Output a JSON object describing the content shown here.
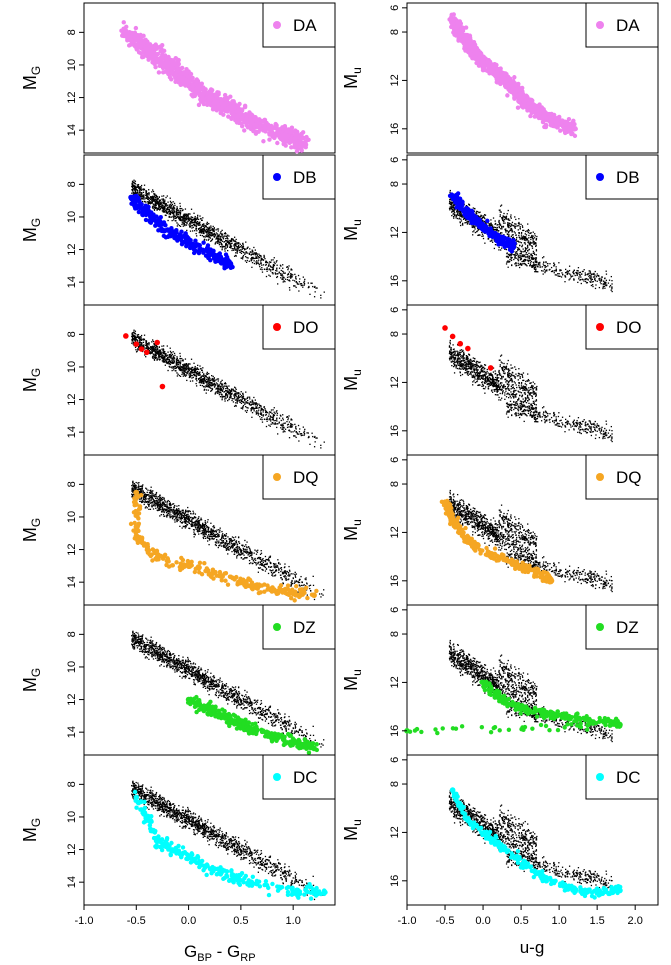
{
  "chart_data": [
    {
      "type": "scatter",
      "column": "left",
      "row": 0,
      "class": "DA",
      "color": "#ee82ee",
      "ylabel": "M",
      "ylabel_sub": "G",
      "xlim": [
        -1.0,
        1.4
      ],
      "ylim": [
        15.4,
        6.2
      ],
      "yticks": [
        8,
        10,
        12,
        14
      ],
      "xticks": [
        -1.0,
        -0.5,
        0.0,
        0.5,
        1.0
      ],
      "legend": "DA",
      "points": [
        {
          "x": -0.6,
          "y": 8.0
        },
        {
          "x": -0.4,
          "y": 9.0
        },
        {
          "x": -0.2,
          "y": 10.0
        },
        {
          "x": 0.0,
          "y": 11.0
        },
        {
          "x": 0.2,
          "y": 12.0
        },
        {
          "x": 0.4,
          "y": 12.6
        },
        {
          "x": 0.6,
          "y": 13.5
        },
        {
          "x": 0.9,
          "y": 14.3
        },
        {
          "x": 1.1,
          "y": 14.8
        }
      ]
    },
    {
      "type": "scatter",
      "column": "left",
      "row": 1,
      "class": "DB",
      "color": "#0000ff",
      "ylabel": "M",
      "ylabel_sub": "G",
      "xlim": [
        -1.0,
        1.4
      ],
      "ylim": [
        15.4,
        6.2
      ],
      "yticks": [
        8,
        10,
        12,
        14
      ],
      "xticks": [
        -1.0,
        -0.5,
        0.0,
        0.5,
        1.0
      ],
      "legend": "DB",
      "points": [
        {
          "x": -0.55,
          "y": 8.8
        },
        {
          "x": -0.4,
          "y": 9.8
        },
        {
          "x": -0.2,
          "y": 10.8
        },
        {
          "x": 0.0,
          "y": 11.6
        },
        {
          "x": 0.2,
          "y": 12.2
        },
        {
          "x": 0.4,
          "y": 13.0
        }
      ]
    },
    {
      "type": "scatter",
      "column": "left",
      "row": 2,
      "class": "DO",
      "color": "#ff0000",
      "ylabel": "M",
      "ylabel_sub": "G",
      "xlim": [
        -1.0,
        1.4
      ],
      "ylim": [
        15.4,
        6.2
      ],
      "yticks": [
        8,
        10,
        12,
        14
      ],
      "xticks": [
        -1.0,
        -0.5,
        0.0,
        0.5,
        1.0
      ],
      "legend": "DO",
      "points": [
        {
          "x": -0.6,
          "y": 8.1
        },
        {
          "x": -0.5,
          "y": 8.6
        },
        {
          "x": -0.45,
          "y": 8.9
        },
        {
          "x": -0.4,
          "y": 9.1
        },
        {
          "x": -0.3,
          "y": 8.5
        },
        {
          "x": -0.25,
          "y": 11.2
        }
      ]
    },
    {
      "type": "scatter",
      "column": "left",
      "row": 3,
      "class": "DQ",
      "color": "#f5a623",
      "ylabel": "M",
      "ylabel_sub": "G",
      "xlim": [
        -1.0,
        1.4
      ],
      "ylim": [
        15.4,
        6.2
      ],
      "yticks": [
        8,
        10,
        12,
        14
      ],
      "xticks": [
        -1.0,
        -0.5,
        0.0,
        0.5,
        1.0
      ],
      "legend": "DQ",
      "points": [
        {
          "x": -0.5,
          "y": 8.5
        },
        {
          "x": -0.5,
          "y": 11.2
        },
        {
          "x": -0.3,
          "y": 12.5
        },
        {
          "x": 0.0,
          "y": 13.0
        },
        {
          "x": 0.3,
          "y": 13.6
        },
        {
          "x": 0.6,
          "y": 14.2
        },
        {
          "x": 0.9,
          "y": 14.6
        },
        {
          "x": 1.2,
          "y": 14.8
        }
      ]
    },
    {
      "type": "scatter",
      "column": "left",
      "row": 4,
      "class": "DZ",
      "color": "#22dd22",
      "ylabel": "M",
      "ylabel_sub": "G",
      "xlim": [
        -1.0,
        1.4
      ],
      "ylim": [
        15.4,
        6.2
      ],
      "yticks": [
        8,
        10,
        12,
        14
      ],
      "xticks": [
        -1.0,
        -0.5,
        0.0,
        0.5,
        1.0
      ],
      "legend": "DZ",
      "points": [
        {
          "x": 0.0,
          "y": 12.0
        },
        {
          "x": 0.2,
          "y": 12.6
        },
        {
          "x": 0.4,
          "y": 13.2
        },
        {
          "x": 0.6,
          "y": 13.8
        },
        {
          "x": 1.0,
          "y": 14.6
        },
        {
          "x": 1.2,
          "y": 15.0
        }
      ]
    },
    {
      "type": "scatter",
      "column": "left",
      "row": 5,
      "class": "DC",
      "color": "#00ffff",
      "ylabel": "M",
      "ylabel_sub": "G",
      "xlim": [
        -1.0,
        1.4
      ],
      "ylim": [
        15.4,
        6.2
      ],
      "yticks": [
        8,
        10,
        12,
        14
      ],
      "xticks": [
        -1.0,
        -0.5,
        0.0,
        0.5,
        1.0
      ],
      "xticklabels": [
        "-1.0",
        "-0.5",
        "0.0",
        "0.5",
        "1.0"
      ],
      "legend": "DC",
      "points": [
        {
          "x": -0.5,
          "y": 8.8
        },
        {
          "x": -0.3,
          "y": 11.5
        },
        {
          "x": 0.0,
          "y": 12.4
        },
        {
          "x": 0.3,
          "y": 13.4
        },
        {
          "x": 0.6,
          "y": 14.0
        },
        {
          "x": 1.0,
          "y": 14.6
        },
        {
          "x": 1.3,
          "y": 14.6
        }
      ]
    },
    {
      "type": "scatter",
      "column": "right",
      "row": 0,
      "class": "DA",
      "color": "#ee82ee",
      "ylabel": "M",
      "ylabel_sub": "u",
      "xlim": [
        -1.0,
        2.3
      ],
      "ylim": [
        18.0,
        5.6
      ],
      "yticks": [
        6,
        8,
        12,
        16
      ],
      "xticks": [
        -1.0,
        -0.5,
        0.0,
        0.5,
        1.0,
        1.5,
        2.0
      ],
      "legend": "DA",
      "points": [
        {
          "x": -0.4,
          "y": 7.0
        },
        {
          "x": -0.2,
          "y": 9.0
        },
        {
          "x": 0.0,
          "y": 10.5
        },
        {
          "x": 0.3,
          "y": 12.0
        },
        {
          "x": 0.5,
          "y": 13.5
        },
        {
          "x": 0.8,
          "y": 15.0
        },
        {
          "x": 1.2,
          "y": 16.0
        }
      ]
    },
    {
      "type": "scatter",
      "column": "right",
      "row": 1,
      "class": "DB",
      "color": "#0000ff",
      "ylabel": "M",
      "ylabel_sub": "u",
      "xlim": [
        -1.0,
        2.3
      ],
      "ylim": [
        18.0,
        5.6
      ],
      "yticks": [
        6,
        8,
        12,
        16
      ],
      "xticks": [
        -1.0,
        -0.5,
        0.0,
        0.5,
        1.0,
        1.5,
        2.0
      ],
      "legend": "DB",
      "points": [
        {
          "x": -0.4,
          "y": 9.0
        },
        {
          "x": -0.2,
          "y": 10.5
        },
        {
          "x": 0.0,
          "y": 11.5
        },
        {
          "x": 0.2,
          "y": 12.5
        },
        {
          "x": 0.4,
          "y": 13.2
        }
      ]
    },
    {
      "type": "scatter",
      "column": "right",
      "row": 2,
      "class": "DO",
      "color": "#ff0000",
      "ylabel": "M",
      "ylabel_sub": "u",
      "xlim": [
        -1.0,
        2.3
      ],
      "ylim": [
        18.0,
        5.6
      ],
      "yticks": [
        6,
        8,
        12,
        16
      ],
      "xticks": [
        -1.0,
        -0.5,
        0.0,
        0.5,
        1.0,
        1.5,
        2.0
      ],
      "legend": "DO",
      "points": [
        {
          "x": -0.5,
          "y": 7.5
        },
        {
          "x": -0.4,
          "y": 8.2
        },
        {
          "x": -0.3,
          "y": 8.8
        },
        {
          "x": -0.2,
          "y": 9.2
        },
        {
          "x": 0.1,
          "y": 10.8
        }
      ]
    },
    {
      "type": "scatter",
      "column": "right",
      "row": 3,
      "class": "DQ",
      "color": "#f5a623",
      "ylabel": "M",
      "ylabel_sub": "u",
      "xlim": [
        -1.0,
        2.3
      ],
      "ylim": [
        18.0,
        5.6
      ],
      "yticks": [
        6,
        8,
        12,
        16
      ],
      "xticks": [
        -1.0,
        -0.5,
        0.0,
        0.5,
        1.0,
        1.5,
        2.0
      ],
      "legend": "DQ",
      "points": [
        {
          "x": -0.5,
          "y": 9.5
        },
        {
          "x": -0.4,
          "y": 11.0
        },
        {
          "x": -0.2,
          "y": 12.8
        },
        {
          "x": 0.1,
          "y": 13.8
        },
        {
          "x": 0.4,
          "y": 14.5
        },
        {
          "x": 0.7,
          "y": 15.3
        },
        {
          "x": 0.9,
          "y": 16.0
        }
      ]
    },
    {
      "type": "scatter",
      "column": "right",
      "row": 4,
      "class": "DZ",
      "color": "#22dd22",
      "ylabel": "M",
      "ylabel_sub": "u",
      "xlim": [
        -1.0,
        2.3
      ],
      "ylim": [
        18.0,
        5.6
      ],
      "yticks": [
        6,
        8,
        12,
        16
      ],
      "xticks": [
        -1.0,
        -0.5,
        0.0,
        0.5,
        1.0,
        1.5,
        2.0
      ],
      "legend": "DZ",
      "points": [
        {
          "x": 0.0,
          "y": 12.0
        },
        {
          "x": 0.2,
          "y": 13.2
        },
        {
          "x": 0.5,
          "y": 14.2
        },
        {
          "x": 0.8,
          "y": 14.6
        },
        {
          "x": 1.1,
          "y": 14.8
        },
        {
          "x": 1.4,
          "y": 15.2
        },
        {
          "x": 1.8,
          "y": 15.5
        },
        {
          "x": -1.0,
          "y": 16.0
        }
      ]
    },
    {
      "type": "scatter",
      "column": "right",
      "row": 5,
      "class": "DC",
      "color": "#00ffff",
      "ylabel": "M",
      "ylabel_sub": "u",
      "xlim": [
        -1.0,
        2.3
      ],
      "ylim": [
        18.0,
        5.6
      ],
      "yticks": [
        6,
        8,
        12,
        16
      ],
      "xticks": [
        -1.0,
        -0.5,
        0.0,
        0.5,
        1.0,
        1.5,
        2.0
      ],
      "xticklabels": [
        "-1.0",
        "-0.5",
        "0.0",
        "0.5",
        "1.0",
        "1.5",
        "2.0"
      ],
      "legend": "DC",
      "points": [
        {
          "x": -0.4,
          "y": 8.5
        },
        {
          "x": -0.2,
          "y": 11.0
        },
        {
          "x": 0.1,
          "y": 12.5
        },
        {
          "x": 0.4,
          "y": 14.0
        },
        {
          "x": 0.7,
          "y": 15.4
        },
        {
          "x": 1.1,
          "y": 16.6
        },
        {
          "x": 1.5,
          "y": 17.0
        },
        {
          "x": 1.8,
          "y": 16.8
        }
      ]
    }
  ],
  "axes": {
    "left_xlabel": "G",
    "left_xlabel_sub1": "BP",
    "left_xlabel_mid": " - G",
    "left_xlabel_sub2": "RP",
    "right_xlabel": "u-g"
  }
}
